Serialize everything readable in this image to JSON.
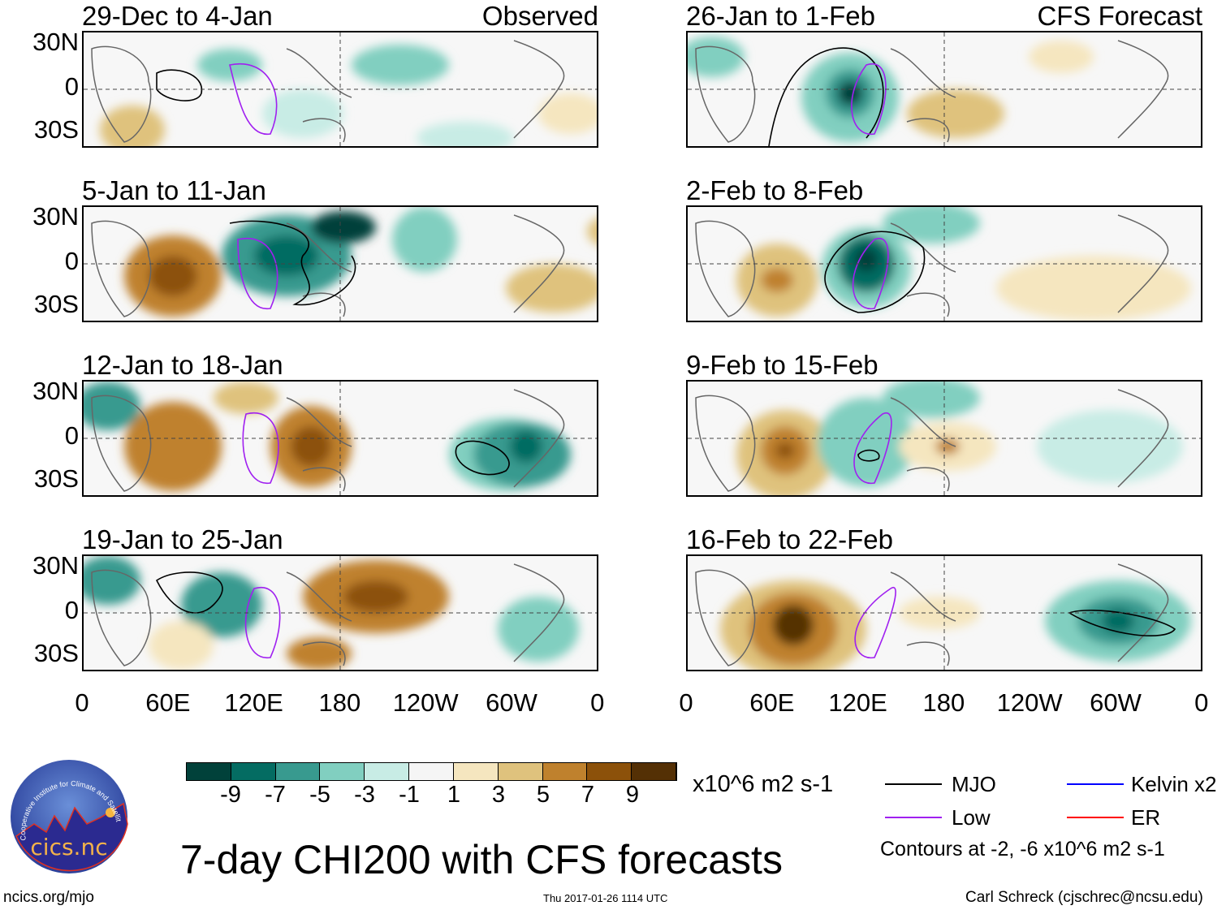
{
  "panels": [
    {
      "title": "29-Dec to 4-Jan",
      "tag": "Observed"
    },
    {
      "title": "5-Jan to 11-Jan",
      "tag": ""
    },
    {
      "title": "12-Jan to 18-Jan",
      "tag": ""
    },
    {
      "title": "19-Jan to 25-Jan",
      "tag": ""
    },
    {
      "title": "26-Jan to 1-Feb",
      "tag": "CFS Forecast"
    },
    {
      "title": "2-Feb to 8-Feb",
      "tag": ""
    },
    {
      "title": "9-Feb to 15-Feb",
      "tag": ""
    },
    {
      "title": "16-Feb to 22-Feb",
      "tag": ""
    }
  ],
  "lat_labels": [
    "30N",
    "0",
    "30S"
  ],
  "lon_labels": [
    "0",
    "60E",
    "120E",
    "180",
    "120W",
    "60W",
    "0"
  ],
  "colorbar": {
    "colors": [
      "#01413a",
      "#046c62",
      "#389a8f",
      "#81cfc0",
      "#c8ece5",
      "#f5f5f5",
      "#f5e6bf",
      "#dfc27d",
      "#bf812d",
      "#8c510a",
      "#543005"
    ],
    "ticks": [
      "-9",
      "-7",
      "-5",
      "-3",
      "-1",
      "1",
      "3",
      "5",
      "7",
      "9"
    ],
    "units": "x10^6 m2 s-1"
  },
  "legend": {
    "items": [
      {
        "label": "MJO",
        "color": "#000000"
      },
      {
        "label": "Kelvin x2",
        "color": "#0000ff"
      },
      {
        "label": "Low",
        "color": "#a020f0"
      },
      {
        "label": "ER",
        "color": "#ff0000"
      }
    ],
    "contours_note": "Contours at -2, -6 x10^6 m2 s-1"
  },
  "title": "7-day CHI200 with CFS forecasts",
  "logo_text": "cics.nc",
  "logo_ring_text": "Cooperative Institute for Climate and Satellites",
  "footer": {
    "url": "ncics.org/mjo",
    "timestamp": "Thu 2017-01-26 1114 UTC",
    "author": "Carl Schreck (cjschrec@ncsu.edu)"
  }
}
